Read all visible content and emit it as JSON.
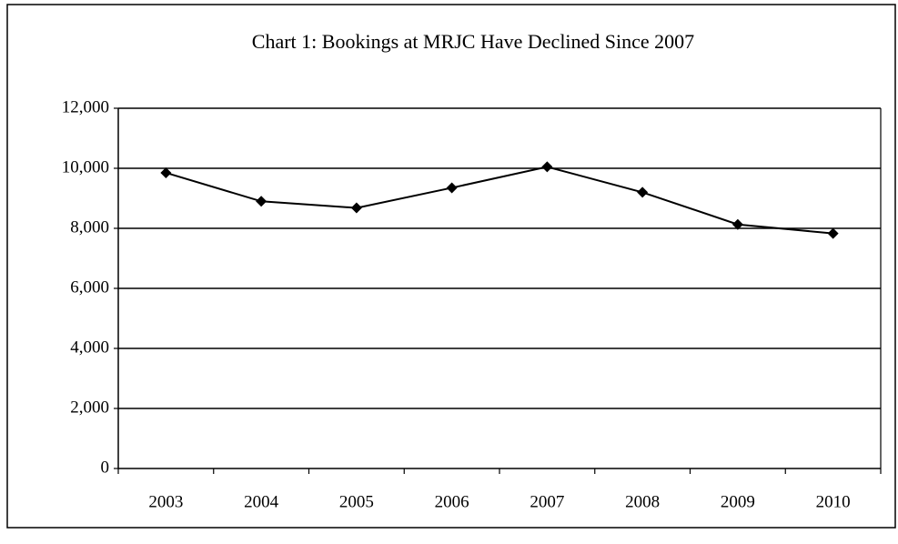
{
  "chart_data": {
    "type": "line",
    "title": "Chart 1:  Bookings at MRJC Have Declined Since 2007",
    "categories": [
      "2003",
      "2004",
      "2005",
      "2006",
      "2007",
      "2008",
      "2009",
      "2010"
    ],
    "series": [
      {
        "name": "Bookings",
        "color": "#000000",
        "values": [
          9850,
          8900,
          8680,
          9350,
          10050,
          9200,
          8130,
          7830
        ]
      }
    ],
    "ylim": [
      0,
      12000
    ],
    "yticks": [
      0,
      {
        "value": 2000,
        "label": "2,000"
      },
      {
        "value": 4000,
        "label": "4,000"
      },
      {
        "value": 6000,
        "label": "6,000"
      },
      {
        "value": 8000,
        "label": "8,000"
      },
      {
        "value": 10000,
        "label": "10,000"
      },
      {
        "value": 12000,
        "label": "12,000"
      }
    ],
    "grid": true
  }
}
